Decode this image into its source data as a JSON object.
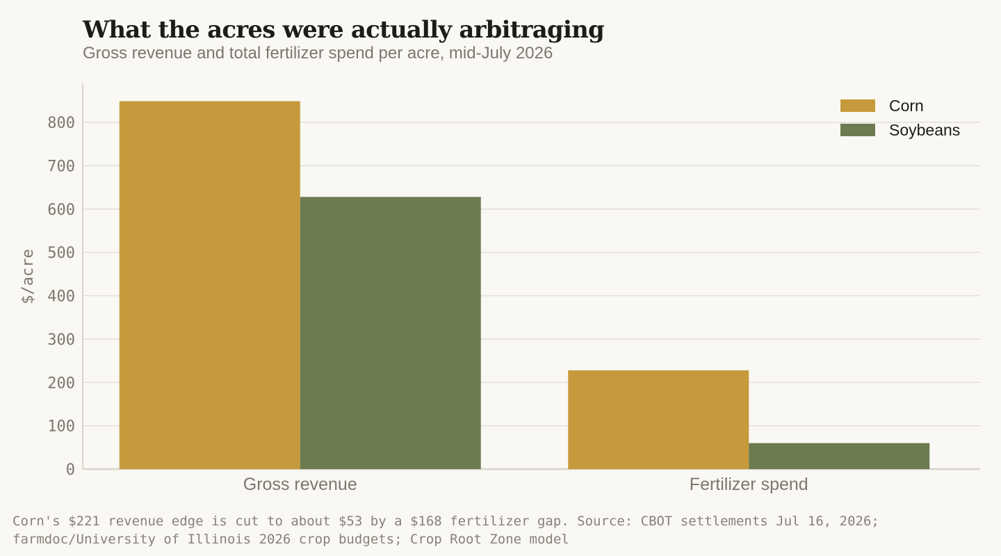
{
  "chart_data": {
    "type": "bar",
    "title": "What the acres were actually arbitraging",
    "subtitle": "Gross revenue and total fertilizer spend per acre, mid-July 2026",
    "ylabel": "$/acre",
    "xlabel": "",
    "categories": [
      "Gross revenue",
      "Fertilizer spend"
    ],
    "series": [
      {
        "name": "Corn",
        "values": [
          849,
          228
        ],
        "color": "#c69a3c"
      },
      {
        "name": "Soybeans",
        "values": [
          628,
          60
        ],
        "color": "#6c7b50"
      }
    ],
    "ylim": [
      0,
      890
    ],
    "yticks": [
      0,
      100,
      200,
      300,
      400,
      500,
      600,
      700,
      800
    ],
    "grid": true,
    "legend_position": "top-right",
    "footnote": "Corn's $221 revenue edge is cut to about $53 by a $168 fertilizer gap.   Source: CBOT settlements Jul 16, 2026; farmdoc/University of Illinois 2026 crop budgets; Crop Root Zone model"
  },
  "colors": {
    "background": "#f9f8f4",
    "gridline": "#e2dfd6",
    "axis": "#d9d5c9",
    "tick_text": "#7b776c",
    "legend_text": "#1c1c1a"
  }
}
